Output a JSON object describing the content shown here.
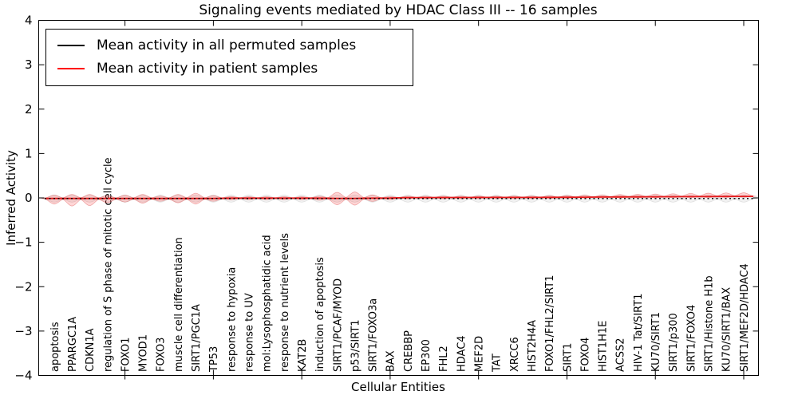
{
  "title": "Signaling events mediated by HDAC Class III -- 16 samples",
  "legend": {
    "items": [
      {
        "label": "Mean activity in all permuted samples",
        "color": "#000000"
      },
      {
        "label": "Mean activity in patient samples",
        "color": "#ff0000"
      }
    ]
  },
  "chart_data": {
    "type": "violin",
    "title": "Signaling events mediated by HDAC Class III -- 16 samples",
    "xlabel": "Cellular Entities",
    "ylabel": "Inferred Activity",
    "ylim": [
      -4,
      4
    ],
    "ytick_values": [
      4,
      3,
      2,
      1,
      0,
      -1,
      -2,
      -3,
      -4
    ],
    "ytick_labels": [
      "4",
      "3",
      "2",
      "1",
      "0",
      "−1",
      "−2",
      "−3",
      "−4"
    ],
    "x_major_tick_indices": [
      4,
      9,
      14,
      19,
      24,
      29,
      34,
      39
    ],
    "grid": false,
    "legend_position": "upper left",
    "categories": [
      "apoptosis",
      "PPARGC1A",
      "CDKN1A",
      "regulation of S phase of mitotic cell cycle",
      "FOXO1",
      "MYOD1",
      "FOXO3",
      "muscle cell differentiation",
      "SIRT1/PGC1A",
      "TP53",
      "response to hypoxia",
      "response to UV",
      "mol:Lysophosphatidic acid",
      "response to nutrient levels",
      "KAT2B",
      "induction of apoptosis",
      "SIRT1/PCAF/MYOD",
      "p53/SIRT1",
      "SIRT1/FOXO3a",
      "BAX",
      "CREBBP",
      "EP300",
      "FHL2",
      "HDAC4",
      "MEF2D",
      "TAT",
      "XRCC6",
      "HIST2H4A",
      "FOXO1/FHL2/SIRT1",
      "SIRT1",
      "FOXO4",
      "HIST1H1E",
      "ACSS2",
      "HIV-1 Tat/SIRT1",
      "KU70/SIRT1",
      "SIRT1/p300",
      "SIRT1/FOXO4",
      "SIRT1/Histone H1b",
      "KU70/SIRT1/BAX",
      "SIRT1/MEF2D/HDAC4"
    ],
    "series": [
      {
        "name": "Mean activity in all permuted samples",
        "line_color": "#000000",
        "line_style": "dotted",
        "fill": "rgba(0,0,0,0.055)",
        "stroke": "rgba(0,0,0,0.09)",
        "mean": -0.014,
        "half_up": 0.082,
        "half_down": 0.082
      },
      {
        "name": "Mean activity in patient samples",
        "line_color": "#e41a1c",
        "line_style": "solid",
        "fill": "rgba(255,0,0,0.16)",
        "stroke": "rgba(200,0,0,0.28)",
        "mean": [
          -0.012,
          -0.012,
          -0.012,
          -0.012,
          -0.012,
          -0.012,
          -0.012,
          -0.012,
          -0.012,
          -0.012,
          -0.006,
          -0.006,
          -0.006,
          -0.006,
          -0.006,
          -0.006,
          -0.01,
          -0.01,
          -0.006,
          -0.004,
          0.008,
          0.008,
          0.009,
          0.009,
          0.01,
          0.01,
          0.011,
          0.011,
          0.013,
          0.015,
          0.017,
          0.019,
          0.021,
          0.023,
          0.025,
          0.027,
          0.029,
          0.031,
          0.033,
          0.035
        ],
        "half_up": [
          0.072,
          0.09,
          0.09,
          0.063,
          0.072,
          0.09,
          0.054,
          0.09,
          0.117,
          0.063,
          0.036,
          0.032,
          0.032,
          0.032,
          0.032,
          0.045,
          0.135,
          0.144,
          0.072,
          0.036,
          0.029,
          0.029,
          0.029,
          0.029,
          0.029,
          0.029,
          0.029,
          0.029,
          0.036,
          0.04,
          0.045,
          0.049,
          0.054,
          0.058,
          0.063,
          0.068,
          0.072,
          0.076,
          0.079,
          0.081
        ],
        "half_down": [
          0.126,
          0.171,
          0.162,
          0.099,
          0.081,
          0.108,
          0.063,
          0.099,
          0.126,
          0.063,
          0.036,
          0.032,
          0.032,
          0.032,
          0.032,
          0.045,
          0.144,
          0.153,
          0.072,
          0.036,
          0.029,
          0.029,
          0.029,
          0.029,
          0.029,
          0.029,
          0.029,
          0.029,
          0.027,
          0.023,
          0.022,
          0.02,
          0.018,
          0.018,
          0.018,
          0.018,
          0.018,
          0.018,
          0.018,
          0.018
        ]
      }
    ]
  }
}
